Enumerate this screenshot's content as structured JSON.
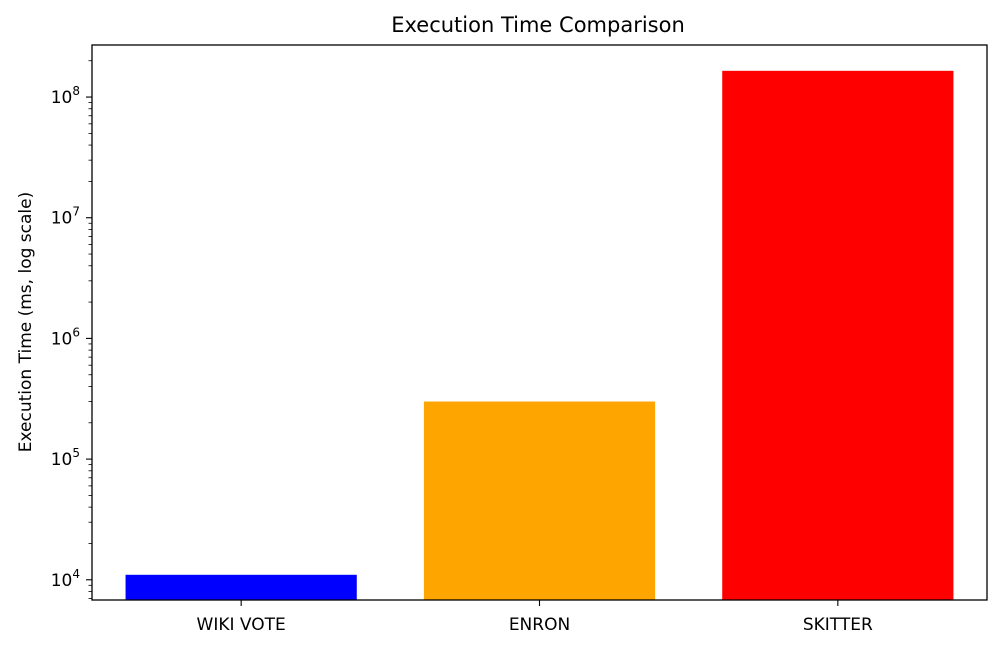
{
  "chart_data": {
    "type": "bar",
    "title": "Execution Time Comparison",
    "xlabel": "",
    "ylabel": "Execution Time (ms, log scale)",
    "yscale": "log",
    "ylim": [
      6800,
      270000000
    ],
    "yticks": [
      {
        "value": 10000,
        "base": "10",
        "exp": "4"
      },
      {
        "value": 100000,
        "base": "10",
        "exp": "5"
      },
      {
        "value": 1000000,
        "base": "10",
        "exp": "6"
      },
      {
        "value": 10000000,
        "base": "10",
        "exp": "7"
      },
      {
        "value": 100000000,
        "base": "10",
        "exp": "8"
      }
    ],
    "categories": [
      "WIKI VOTE",
      "ENRON",
      "SKITTER"
    ],
    "values": [
      11000,
      300000,
      165000000
    ],
    "colors": [
      "#0000ff",
      "#ffa500",
      "#ff0000"
    ],
    "grid": false,
    "legend": "none"
  }
}
